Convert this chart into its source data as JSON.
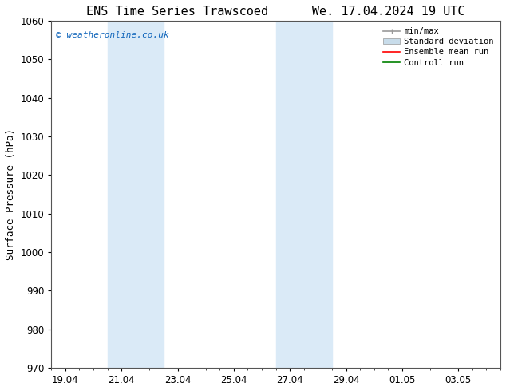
{
  "title_left": "ENS Time Series Trawscoed",
  "title_right": "We. 17.04.2024 19 UTC",
  "ylabel": "Surface Pressure (hPa)",
  "ylim": [
    970,
    1060
  ],
  "yticks": [
    970,
    980,
    990,
    1000,
    1010,
    1020,
    1030,
    1040,
    1050,
    1060
  ],
  "xtick_labels": [
    "19.04",
    "21.04",
    "23.04",
    "25.04",
    "27.04",
    "29.04",
    "01.05",
    "03.05"
  ],
  "xtick_positions": [
    0,
    2,
    4,
    6,
    8,
    10,
    12,
    14
  ],
  "xlim": [
    -0.5,
    15.5
  ],
  "shaded_bands": [
    {
      "x_start": 1.5,
      "x_end": 3.5,
      "color": "#daeaf7"
    },
    {
      "x_start": 7.5,
      "x_end": 9.5,
      "color": "#daeaf7"
    }
  ],
  "watermark_text": "© weatheronline.co.uk",
  "watermark_color": "#1166bb",
  "legend_entries": [
    {
      "label": "min/max",
      "color": "#999999",
      "lw": 1.2
    },
    {
      "label": "Standard deviation",
      "color": "#c8dcea",
      "lw": 6
    },
    {
      "label": "Ensemble mean run",
      "color": "red",
      "lw": 1.2
    },
    {
      "label": "Controll run",
      "color": "green",
      "lw": 1.2
    }
  ],
  "background_color": "#ffffff",
  "grid_color": "#bbbbbb",
  "tick_color": "#000000",
  "title_fontsize": 11,
  "axis_label_fontsize": 9,
  "tick_fontsize": 8.5,
  "legend_fontsize": 7.5
}
